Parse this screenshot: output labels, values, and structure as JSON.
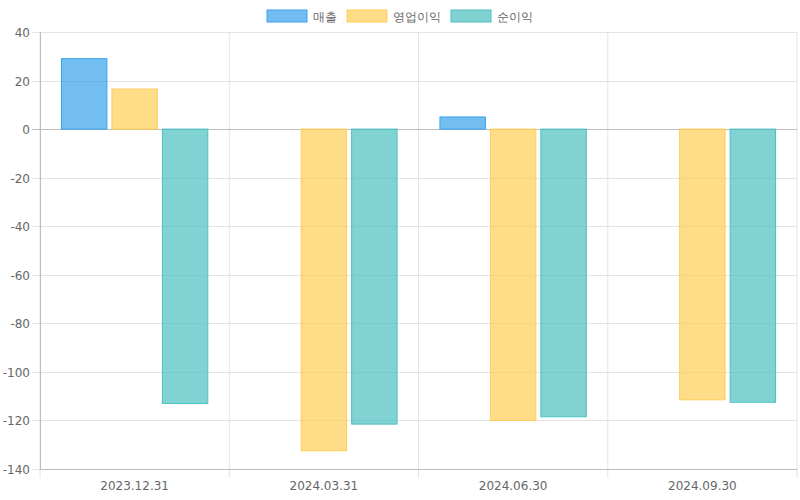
{
  "chart_data": {
    "type": "bar",
    "categories": [
      "2023.12.31",
      "2024.03.31",
      "2024.06.30",
      "2024.09.30"
    ],
    "series": [
      {
        "name": "매출",
        "color": "#36a2eb",
        "values": [
          29,
          null,
          5,
          null
        ]
      },
      {
        "name": "영업이익",
        "color": "#ffcd56",
        "values": [
          16.5,
          -132.5,
          -120,
          -111.5
        ]
      },
      {
        "name": "순이익",
        "color": "#4bc0c0",
        "values": [
          -113,
          -121.5,
          -118.5,
          -112.5
        ]
      }
    ],
    "ylim": [
      -140,
      40
    ],
    "yticks": [
      -140,
      -120,
      -100,
      -80,
      -60,
      -40,
      -20,
      0,
      20,
      40
    ],
    "grid": true,
    "legend": "top"
  }
}
